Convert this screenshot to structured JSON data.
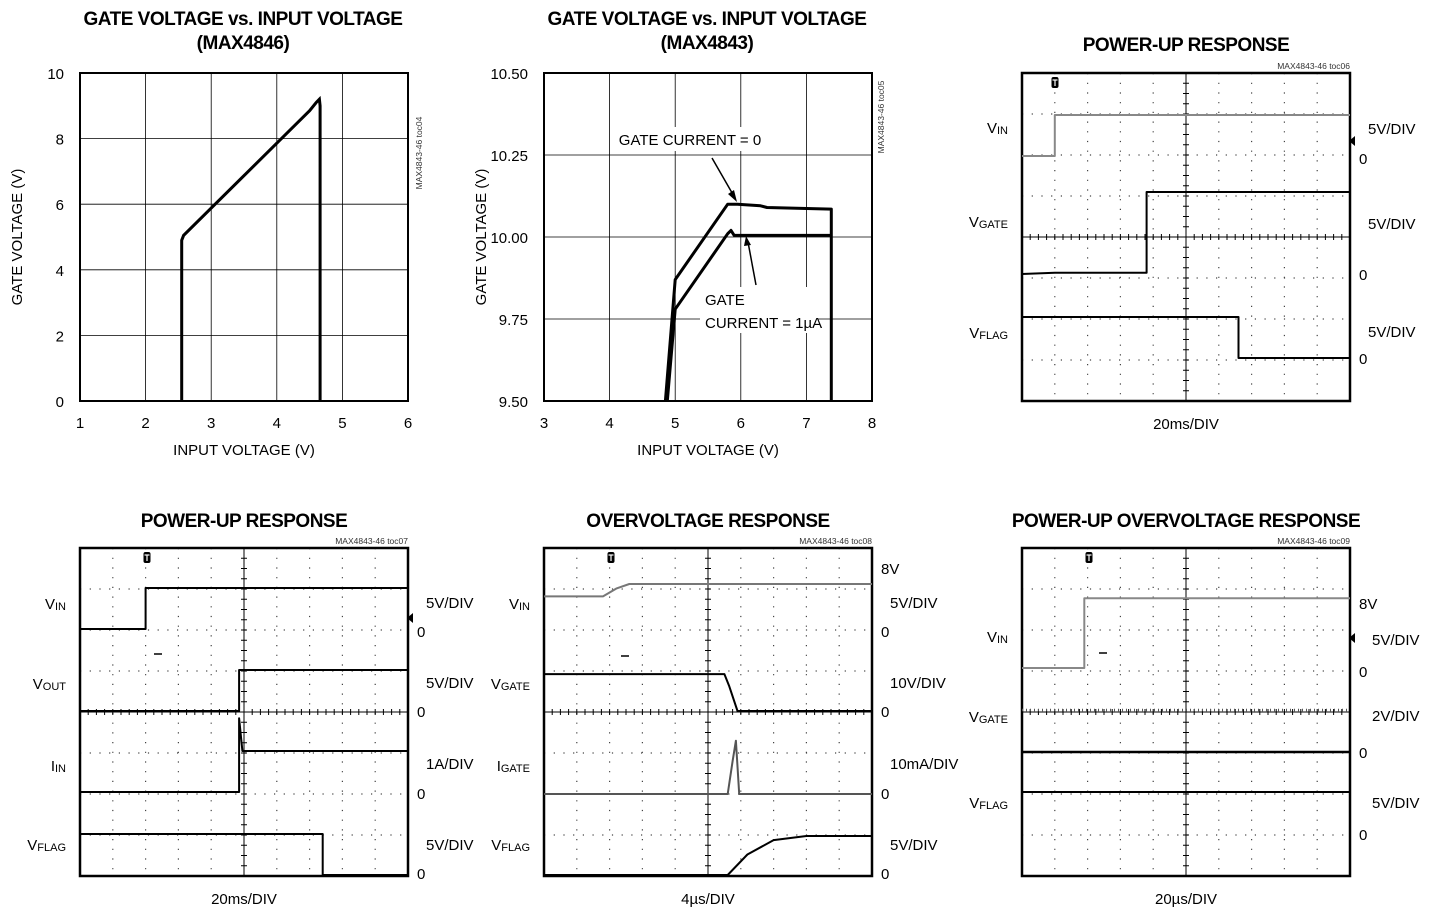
{
  "charts": {
    "c1": {
      "title1": "GATE VOLTAGE vs. INPUT VOLTAGE",
      "title2": "(MAX4846)",
      "code": "MAX4843-46 toc04",
      "xlabel": "INPUT VOLTAGE (V)",
      "ylabel": "GATE VOLTAGE (V)",
      "xticks": [
        "1",
        "2",
        "3",
        "4",
        "5",
        "6"
      ],
      "yticks": [
        "0",
        "2",
        "4",
        "6",
        "8",
        "10"
      ]
    },
    "c2": {
      "title1": "GATE VOLTAGE vs. INPUT VOLTAGE",
      "title2": "(MAX4843)",
      "code": "MAX4843-46 toc05",
      "xlabel": "INPUT VOLTAGE (V)",
      "ylabel": "GATE VOLTAGE (V)",
      "xticks": [
        "3",
        "4",
        "5",
        "6",
        "7",
        "8"
      ],
      "yticks": [
        "9.50",
        "9.75",
        "10.00",
        "10.25",
        "10.50"
      ],
      "ann1": "GATE CURRENT = 0",
      "ann2a": "GATE",
      "ann2b": "CURRENT = 1µA"
    },
    "c3": {
      "title": "POWER-UP RESPONSE",
      "code": "MAX4843-46 toc06",
      "timebase": "20ms/DIV",
      "channels": [
        {
          "name": "V",
          "sub": "IN",
          "scale": "5V/DIV",
          "zero": "0"
        },
        {
          "name": "V",
          "sub": "GATE",
          "scale": "5V/DIV",
          "zero": "0"
        },
        {
          "name": "V",
          "sub": "FLAG",
          "scale": "5V/DIV",
          "zero": "0"
        }
      ]
    },
    "c4": {
      "title": "POWER-UP RESPONSE",
      "code": "MAX4843-46 toc07",
      "timebase": "20ms/DIV",
      "channels": [
        {
          "name": "V",
          "sub": "IN",
          "scale": "5V/DIV",
          "zero": "0"
        },
        {
          "name": "V",
          "sub": "OUT",
          "scale": "5V/DIV",
          "zero": "0"
        },
        {
          "name": "I",
          "sub": "IN",
          "scale": "1A/DIV",
          "zero": "0"
        },
        {
          "name": "V",
          "sub": "FLAG",
          "scale": "5V/DIV",
          "zero": "0"
        }
      ]
    },
    "c5": {
      "title": "OVERVOLTAGE RESPONSE",
      "code": "MAX4843-46 toc08",
      "timebase": "4µs/DIV",
      "level": "8V",
      "channels": [
        {
          "name": "V",
          "sub": "IN",
          "scale": "5V/DIV",
          "zero": "0"
        },
        {
          "name": "V",
          "sub": "GATE",
          "scale": "10V/DIV",
          "zero": "0"
        },
        {
          "name": "I",
          "sub": "GATE",
          "scale": "10mA/DIV",
          "zero": "0"
        },
        {
          "name": "V",
          "sub": "FLAG",
          "scale": "5V/DIV",
          "zero": "0"
        }
      ]
    },
    "c6": {
      "title": "POWER-UP OVERVOLTAGE RESPONSE",
      "code": "MAX4843-46 toc09",
      "timebase": "20µs/DIV",
      "level": "8V",
      "channels": [
        {
          "name": "V",
          "sub": "IN",
          "scale": "5V/DIV",
          "zero": "0"
        },
        {
          "name": "V",
          "sub": "GATE",
          "scale": "2V/DIV",
          "zero": "0"
        },
        {
          "name": "V",
          "sub": "FLAG",
          "scale": "5V/DIV",
          "zero": "0"
        }
      ]
    }
  },
  "chart_data": [
    {
      "type": "line",
      "title": "GATE VOLTAGE vs. INPUT VOLTAGE (MAX4846)",
      "xlabel": "INPUT VOLTAGE (V)",
      "ylabel": "GATE VOLTAGE (V)",
      "xlim": [
        1,
        6
      ],
      "ylim": [
        0,
        10
      ],
      "grid": true,
      "series": [
        {
          "x": [
            2.55,
            2.55,
            2.58,
            4.5,
            4.6,
            4.65,
            4.66,
            4.66
          ],
          "y": [
            0,
            4.9,
            5.05,
            8.85,
            9.1,
            9.2,
            9.0,
            0
          ]
        }
      ]
    },
    {
      "type": "line",
      "title": "GATE VOLTAGE vs. INPUT VOLTAGE (MAX4843)",
      "xlabel": "INPUT VOLTAGE (V)",
      "ylabel": "GATE VOLTAGE (V)",
      "xlim": [
        3,
        8
      ],
      "ylim": [
        9.5,
        10.5
      ],
      "grid": true,
      "series": [
        {
          "name": "GATE CURRENT = 0",
          "x": [
            4.85,
            5.0,
            5.8,
            5.95,
            6.3,
            6.4,
            7.38,
            7.38
          ],
          "y": [
            9.5,
            9.87,
            10.1,
            10.1,
            10.095,
            10.09,
            10.085,
            9.5
          ]
        },
        {
          "name": "GATE CURRENT = 1µA",
          "x": [
            4.88,
            5.0,
            5.8,
            5.85,
            5.9,
            7.38
          ],
          "y": [
            9.5,
            9.78,
            10.01,
            10.02,
            10.005,
            10.005
          ]
        }
      ]
    },
    {
      "type": "line",
      "title": "POWER-UP RESPONSE",
      "xlabel": "20ms/DIV",
      "xlim": [
        0,
        10
      ],
      "grid": true,
      "series": [
        {
          "name": "VIN",
          "unit": "5V/DIV",
          "x": [
            0,
            1.0,
            1.0,
            10
          ],
          "y": [
            0,
            0,
            1.0,
            1.0
          ]
        },
        {
          "name": "VGATE",
          "unit": "5V/DIV",
          "x": [
            0,
            1.0,
            3.8,
            3.8,
            10
          ],
          "y": [
            0,
            0.03,
            0.03,
            2.0,
            2.0
          ]
        },
        {
          "name": "VFLAG",
          "unit": "5V/DIV",
          "x": [
            0,
            6.6,
            6.6,
            10
          ],
          "y": [
            1.0,
            1.0,
            0,
            0
          ]
        }
      ]
    },
    {
      "type": "line",
      "title": "POWER-UP RESPONSE",
      "xlabel": "20ms/DIV",
      "xlim": [
        0,
        10
      ],
      "grid": true,
      "series": [
        {
          "name": "VIN",
          "unit": "5V/DIV",
          "x": [
            0,
            2.0,
            2.0,
            10
          ],
          "y": [
            0,
            0,
            1.0,
            1.0
          ]
        },
        {
          "name": "VOUT",
          "unit": "5V/DIV",
          "x": [
            0,
            4.85,
            4.85,
            10
          ],
          "y": [
            0,
            0,
            1.0,
            1.0
          ]
        },
        {
          "name": "IIN",
          "unit": "1A/DIV",
          "x": [
            0,
            4.85,
            4.85,
            4.95,
            4.95,
            10
          ],
          "y": [
            0,
            0,
            1.8,
            1.0,
            1.0,
            1.0
          ]
        },
        {
          "name": "VFLAG",
          "unit": "5V/DIV",
          "x": [
            0,
            7.4,
            7.4,
            10
          ],
          "y": [
            1.0,
            1.0,
            0,
            0
          ]
        }
      ]
    },
    {
      "type": "line",
      "title": "OVERVOLTAGE RESPONSE",
      "xlabel": "4µs/DIV",
      "xlim": [
        0,
        10
      ],
      "grid": true,
      "series": [
        {
          "name": "VIN",
          "unit": "5V/DIV",
          "x": [
            0,
            1.8,
            2.2,
            2.6,
            3.2,
            10
          ],
          "y": [
            0.6,
            0.6,
            0.85,
            1.0,
            1.0,
            1.0
          ]
        },
        {
          "name": "VGATE",
          "unit": "10V/DIV",
          "x": [
            0,
            5.5,
            5.65,
            5.9,
            10
          ],
          "y": [
            0.9,
            0.9,
            0.6,
            0,
            0
          ]
        },
        {
          "name": "IGATE",
          "unit": "10mA/DIV",
          "x": [
            0,
            5.6,
            5.75,
            5.85,
            5.95,
            10
          ],
          "y": [
            0,
            0,
            0.8,
            1.3,
            0,
            0
          ]
        },
        {
          "name": "VFLAG",
          "unit": "5V/DIV",
          "x": [
            0,
            5.6,
            6.2,
            7.0,
            8.0,
            10
          ],
          "y": [
            0,
            0,
            0.5,
            0.85,
            0.95,
            0.95
          ]
        }
      ]
    },
    {
      "type": "line",
      "title": "POWER-UP OVERVOLTAGE RESPONSE",
      "xlabel": "20µs/DIV",
      "xlim": [
        0,
        10
      ],
      "grid": true,
      "series": [
        {
          "name": "VIN",
          "unit": "5V/DIV",
          "x": [
            0,
            1.9,
            1.9,
            10
          ],
          "y": [
            0,
            0,
            1.7,
            1.7
          ]
        },
        {
          "name": "VGATE",
          "unit": "2V/DIV",
          "x": [
            0,
            10
          ],
          "y": [
            0,
            0
          ]
        },
        {
          "name": "VFLAG",
          "unit": "5V/DIV",
          "x": [
            0,
            10
          ],
          "y": [
            0,
            0
          ]
        }
      ]
    }
  ]
}
